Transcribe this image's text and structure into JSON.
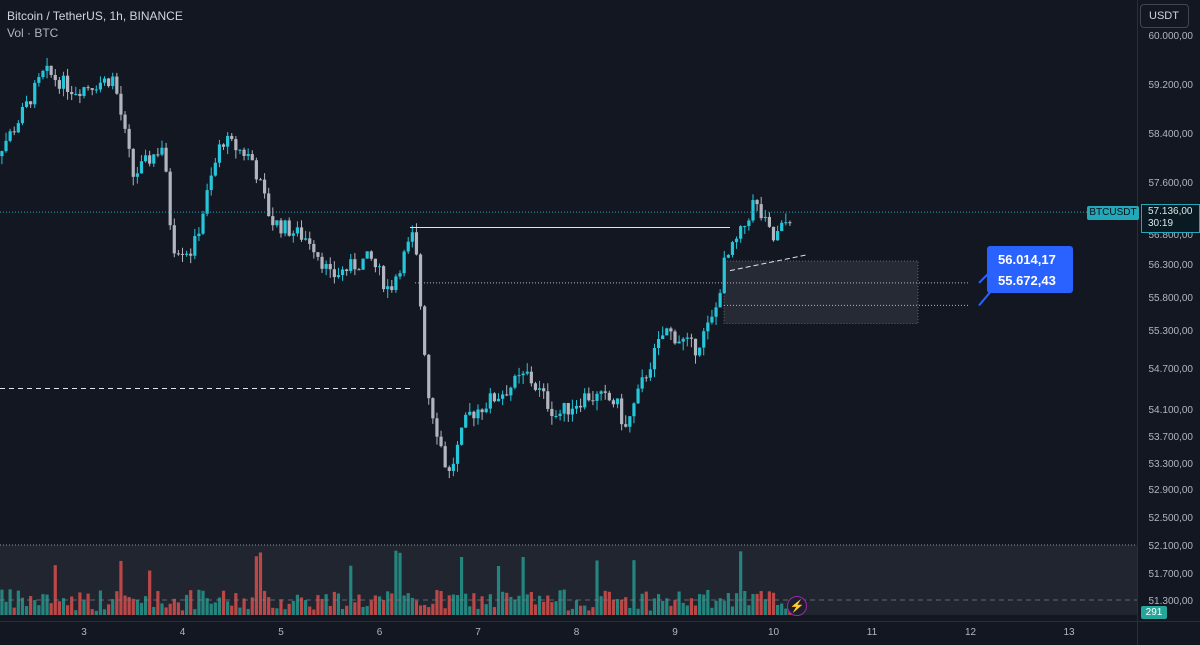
{
  "header": {
    "title": "Bitcoin / TetherUS, 1h, BINANCE",
    "volume_label": "Vol · BTC"
  },
  "currency_button": "USDT",
  "price_axis": {
    "symbol_tag": "BTCUSDT",
    "last_price": "57.136,00",
    "countdown": "30:19",
    "volume_value": "291"
  },
  "callout": {
    "line1": "56.014,17",
    "line2": "55.672,43"
  },
  "colors": {
    "background": "#131722",
    "up": "#26c6da",
    "down": "#b2b5be",
    "vol_up": "#26a69a",
    "vol_down": "#ef5350",
    "accent": "#2962ff",
    "last_price_line": "#22a8b9"
  },
  "chart_data": {
    "type": "candlestick",
    "title": "Bitcoin / TetherUS, 1h, BINANCE",
    "y_tick_labels": [
      "60.000,00",
      "59.200,00",
      "58.400,00",
      "57.600,00",
      "56.800,00",
      "56.300,00",
      "55.800,00",
      "55.300,00",
      "54.700,00",
      "54.100,00",
      "53.700,00",
      "53.300,00",
      "52.900,00",
      "52.500,00",
      "52.100,00",
      "51.700,00",
      "51.300,00"
    ],
    "x_tick_labels": [
      "3",
      "4",
      "5",
      "6",
      "7",
      "8",
      "9",
      "10",
      "11",
      "12",
      "13"
    ],
    "ylim": [
      51200,
      60100
    ],
    "last_price": 57136,
    "drawn_levels": {
      "horizontal_ray_high": 56900,
      "dashed_level_left": 54400,
      "zone_top": 56350,
      "zone_bottom": 55400,
      "dotted_level_1": 56014.17,
      "dotted_level_2": 55672.43
    },
    "series": [
      {
        "name": "Price",
        "points": [
          {
            "x": 2.0,
            "close": 57800
          },
          {
            "x": 2.3,
            "close": 58500
          },
          {
            "x": 2.6,
            "close": 59400
          },
          {
            "x": 2.9,
            "close": 59100
          },
          {
            "x": 3.3,
            "close": 59300
          },
          {
            "x": 3.5,
            "close": 57700
          },
          {
            "x": 3.8,
            "close": 58200
          },
          {
            "x": 3.9,
            "close": 56600
          },
          {
            "x": 4.1,
            "close": 56500
          },
          {
            "x": 4.4,
            "close": 58300
          },
          {
            "x": 4.7,
            "close": 58000
          },
          {
            "x": 4.9,
            "close": 57000
          },
          {
            "x": 5.3,
            "close": 56700
          },
          {
            "x": 5.5,
            "close": 56100
          },
          {
            "x": 5.9,
            "close": 56400
          },
          {
            "x": 6.1,
            "close": 55900
          },
          {
            "x": 6.35,
            "close": 56800
          },
          {
            "x": 6.5,
            "close": 54300
          },
          {
            "x": 6.7,
            "close": 53100
          },
          {
            "x": 6.9,
            "close": 54000
          },
          {
            "x": 7.2,
            "close": 54300
          },
          {
            "x": 7.5,
            "close": 54600
          },
          {
            "x": 7.8,
            "close": 54000
          },
          {
            "x": 8.1,
            "close": 54300
          },
          {
            "x": 8.4,
            "close": 54200
          },
          {
            "x": 8.5,
            "close": 53800
          },
          {
            "x": 8.7,
            "close": 54600
          },
          {
            "x": 8.9,
            "close": 55300
          },
          {
            "x": 9.2,
            "close": 55000
          },
          {
            "x": 9.4,
            "close": 55500
          },
          {
            "x": 9.5,
            "close": 56300
          },
          {
            "x": 9.7,
            "close": 56900
          },
          {
            "x": 9.8,
            "close": 57300
          },
          {
            "x": 10.0,
            "close": 56700
          },
          {
            "x": 10.2,
            "close": 57140
          }
        ]
      }
    ],
    "volume_series_name": "Vol · BTC",
    "grid": false,
    "legend": "top-left"
  }
}
